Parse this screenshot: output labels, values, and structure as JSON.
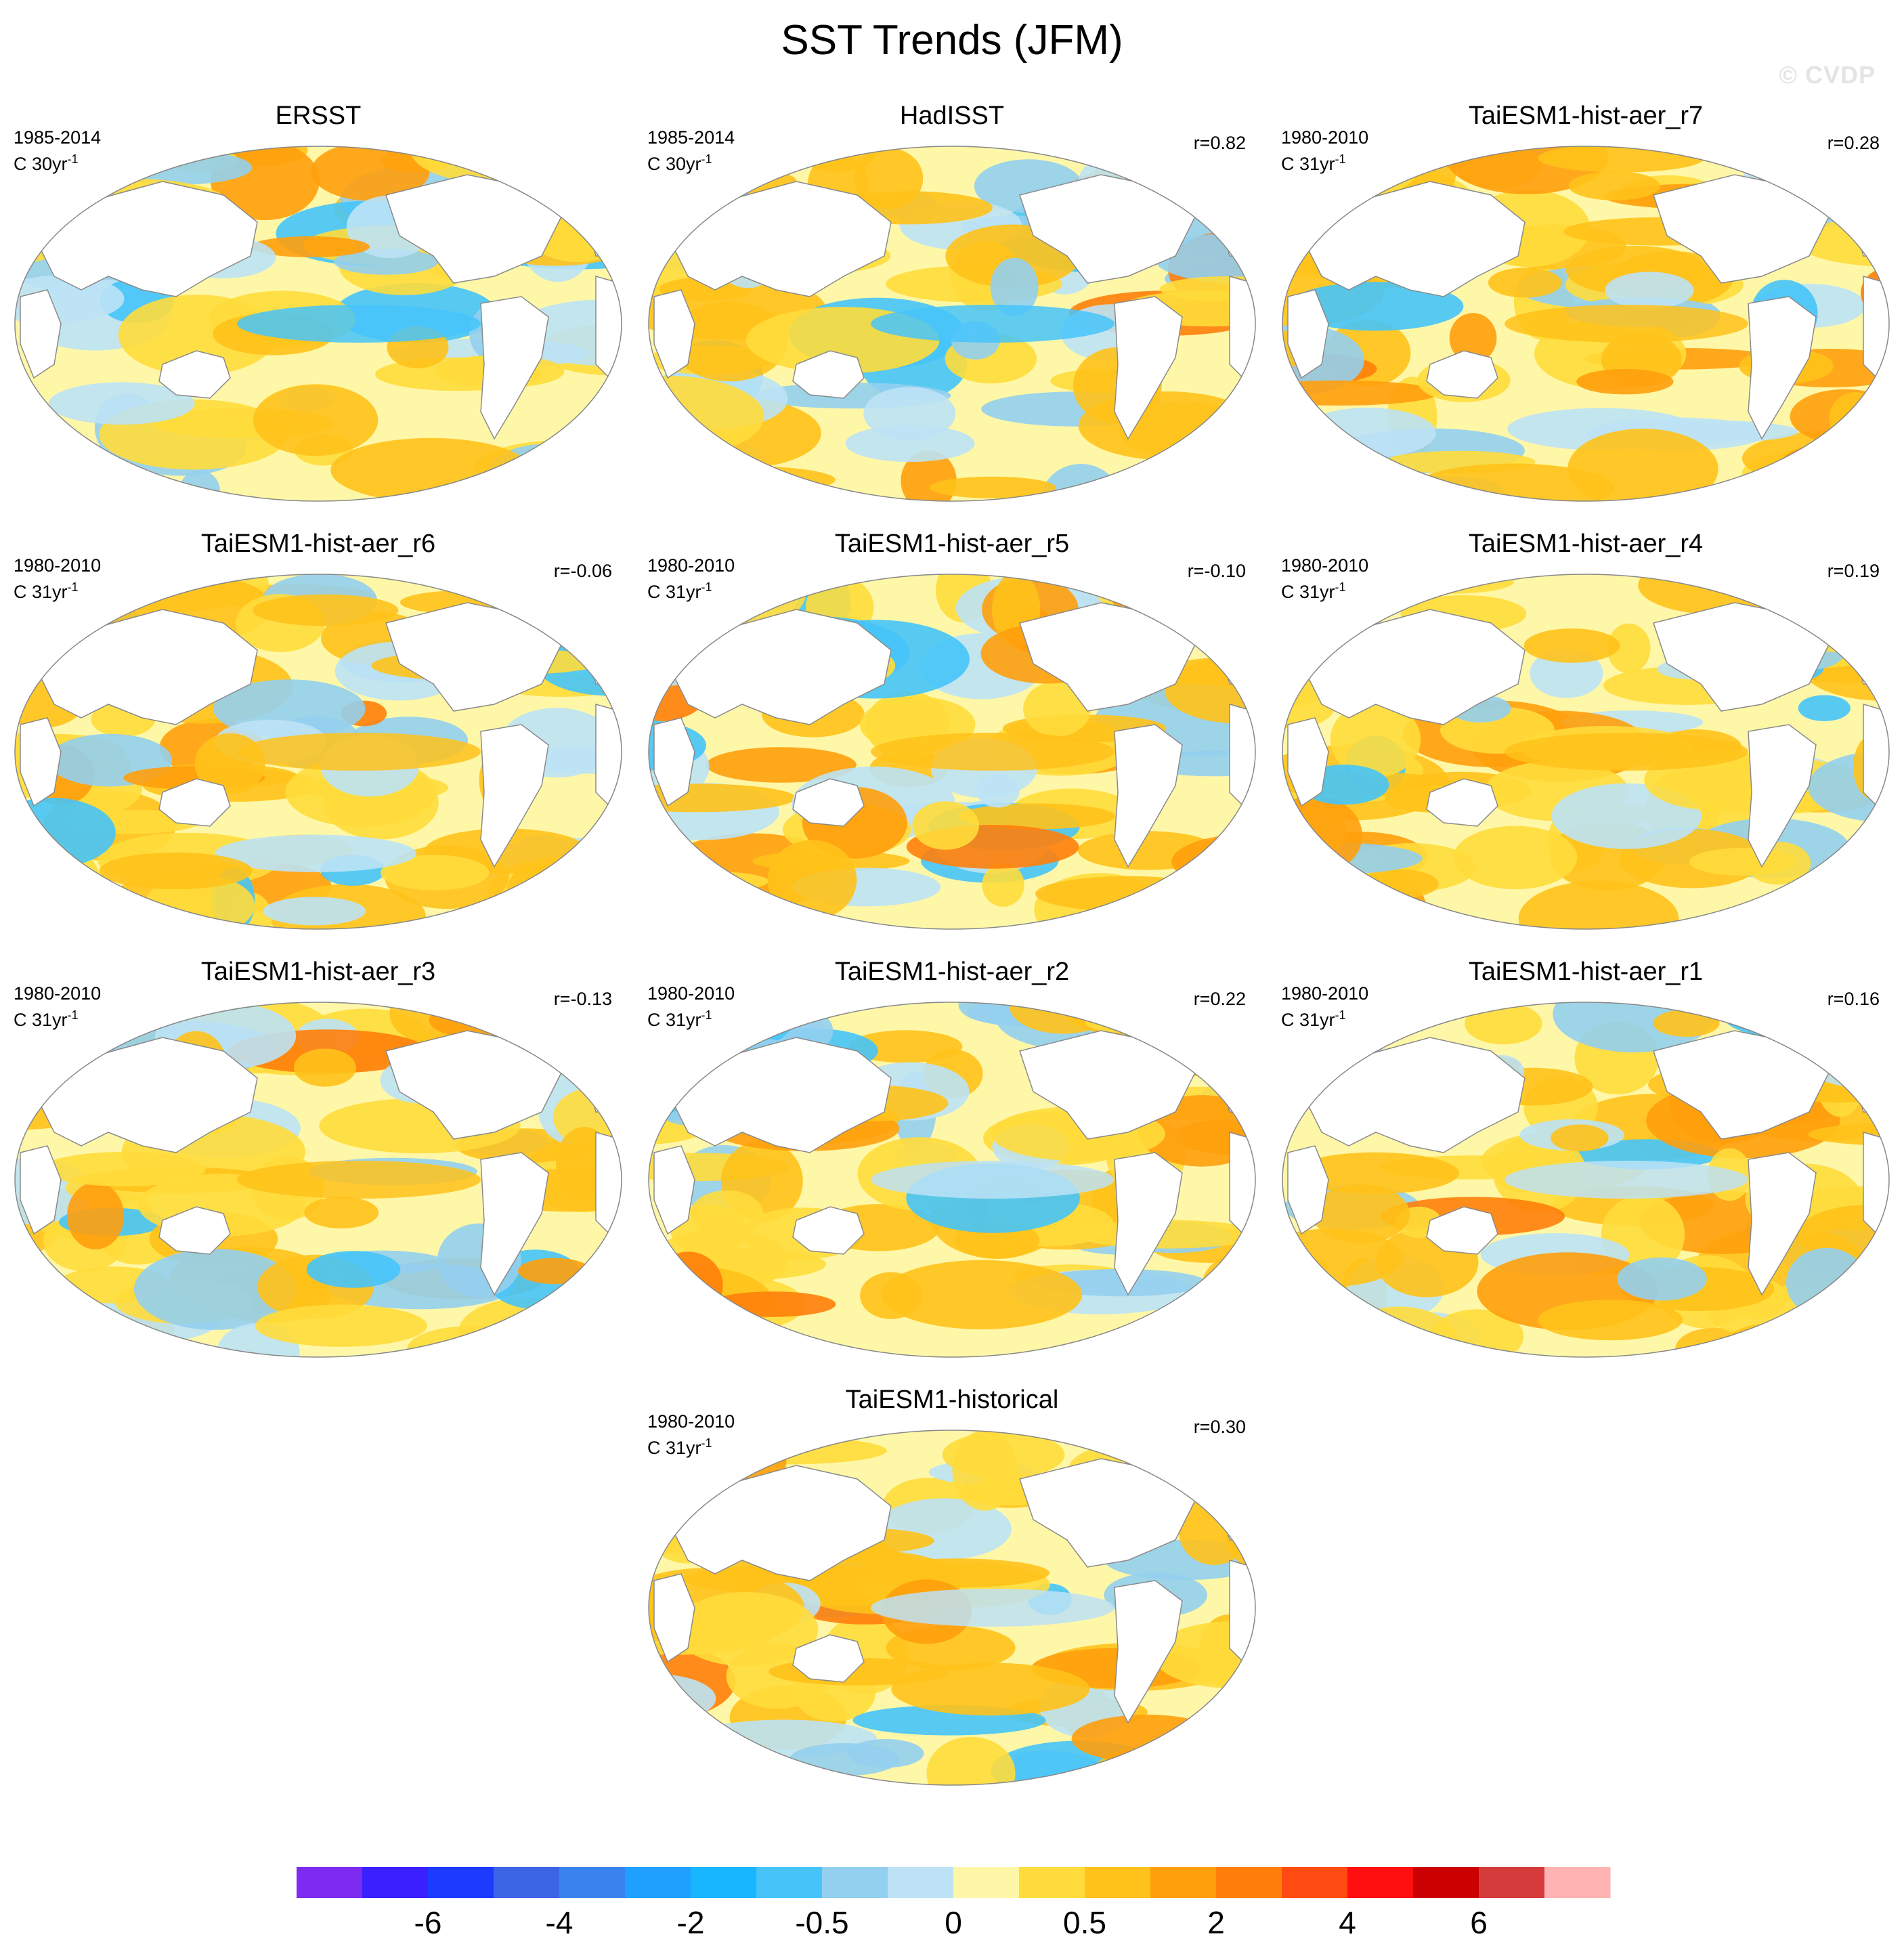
{
  "title": "SST Trends (JFM)",
  "watermark": "© CVDP",
  "colors": {
    "land": "#ffffff",
    "coast": "#8a8a8a",
    "palette": [
      "#7d2bf0",
      "#3a1fff",
      "#1b3bff",
      "#3c65e6",
      "#3a82ee",
      "#1fa0ff",
      "#18b6ff",
      "#46c4fa",
      "#93cfee",
      "#bde2f5",
      "#fff7a8",
      "#ffdc3b",
      "#ffc21a",
      "#ff9f0c",
      "#ff7f0a",
      "#ff4b12",
      "#ff0f0f",
      "#cc0000",
      "#d63b3b",
      "#ffb3b3"
    ]
  },
  "panels": [
    {
      "title": "ERSST",
      "period": "1985-2014",
      "units_base": "C 30yr",
      "units_exp": "-1",
      "corr": ""
    },
    {
      "title": "HadISST",
      "period": "1985-2014",
      "units_base": "C 30yr",
      "units_exp": "-1",
      "corr": "r=0.82"
    },
    {
      "title": "TaiESM1-hist-aer_r7",
      "period": "1980-2010",
      "units_base": "C 31yr",
      "units_exp": "-1",
      "corr": "r=0.28"
    },
    {
      "title": "TaiESM1-hist-aer_r6",
      "period": "1980-2010",
      "units_base": "C 31yr",
      "units_exp": "-1",
      "corr": "r=-0.06"
    },
    {
      "title": "TaiESM1-hist-aer_r5",
      "period": "1980-2010",
      "units_base": "C 31yr",
      "units_exp": "-1",
      "corr": "r=-0.10"
    },
    {
      "title": "TaiESM1-hist-aer_r4",
      "period": "1980-2010",
      "units_base": "C 31yr",
      "units_exp": "-1",
      "corr": "r=0.19"
    },
    {
      "title": "TaiESM1-hist-aer_r3",
      "period": "1980-2010",
      "units_base": "C 31yr",
      "units_exp": "-1",
      "corr": "r=-0.13"
    },
    {
      "title": "TaiESM1-hist-aer_r2",
      "period": "1980-2010",
      "units_base": "C 31yr",
      "units_exp": "-1",
      "corr": "r=0.22"
    },
    {
      "title": "TaiESM1-hist-aer_r1",
      "period": "1980-2010",
      "units_base": "C 31yr",
      "units_exp": "-1",
      "corr": "r=0.16"
    },
    {
      "title": "TaiESM1-historical",
      "period": "1980-2010",
      "units_base": "C 31yr",
      "units_exp": "-1",
      "corr": "r=0.30"
    }
  ],
  "chart_data": {
    "type": "heatmap",
    "title": "SST Trends (JFM)",
    "projection": "Robinson, Pacific-centered",
    "variable": "Sea surface temperature trend",
    "units": "C per period",
    "colorbar": {
      "tick_labels": [
        "-6",
        "-4",
        "-2",
        "-0.5",
        "0",
        "0.5",
        "2",
        "4",
        "6"
      ],
      "tick_boundary_index": [
        2,
        4,
        6,
        8,
        10,
        12,
        14,
        16,
        18
      ],
      "n_colors": 20
    },
    "panel_dominant_trend": [
      {
        "panel": "ERSST",
        "tropical_pacific": "cooling",
        "global": "mixed warming"
      },
      {
        "panel": "HadISST",
        "tropical_pacific": "cooling",
        "global": "mixed"
      },
      {
        "panel": "TaiESM1-hist-aer_r7",
        "tropical_pacific": "warming",
        "global": "warming"
      },
      {
        "panel": "TaiESM1-hist-aer_r6",
        "tropical_pacific": "warming",
        "global": "warming"
      },
      {
        "panel": "TaiESM1-hist-aer_r5",
        "tropical_pacific": "warming",
        "global": "warming"
      },
      {
        "panel": "TaiESM1-hist-aer_r4",
        "tropical_pacific": "weak warming",
        "global": "warming"
      },
      {
        "panel": "TaiESM1-hist-aer_r3",
        "tropical_pacific": "warming",
        "global": "warming"
      },
      {
        "panel": "TaiESM1-hist-aer_r2",
        "tropical_pacific": "weak cooling",
        "global": "mixed warming"
      },
      {
        "panel": "TaiESM1-hist-aer_r1",
        "tropical_pacific": "weak cooling",
        "global": "warming"
      },
      {
        "panel": "TaiESM1-historical",
        "tropical_pacific": "weak cooling",
        "global": "warming"
      }
    ]
  }
}
